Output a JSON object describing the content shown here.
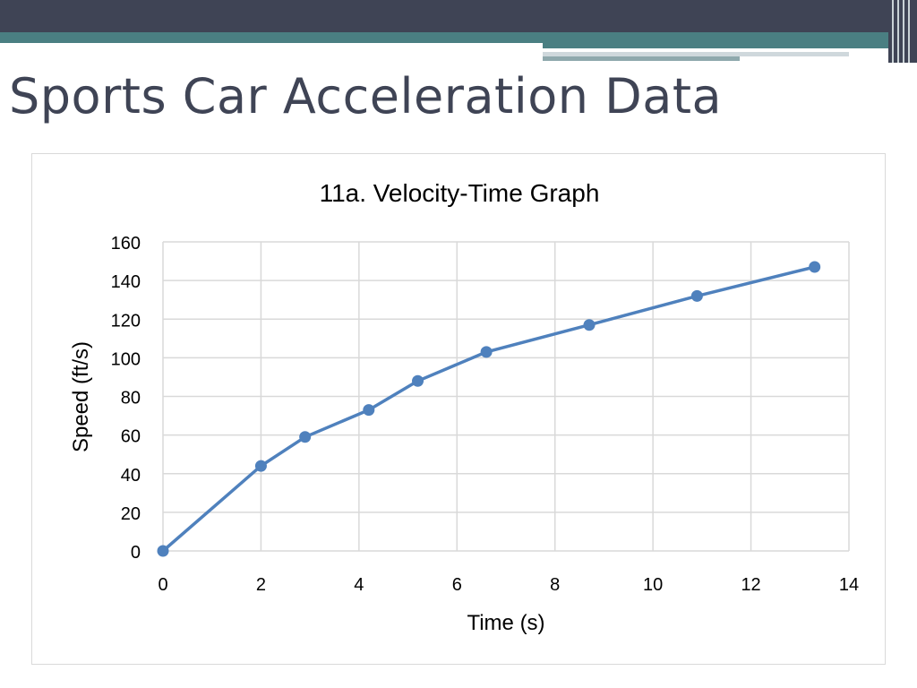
{
  "slide": {
    "title": "Sports Car Acceleration Data"
  },
  "colors": {
    "header_dark": "#3f4455",
    "header_teal": "#4a7f82",
    "series_line": "#4f81bd",
    "gridline": "#d9d9d9"
  },
  "chart_data": {
    "type": "line",
    "title": "11a. Velocity-Time Graph",
    "xlabel": "Time (s)",
    "ylabel": "Speed (ft/s)",
    "xlim": [
      0,
      14
    ],
    "ylim": [
      0,
      160
    ],
    "xticks": [
      0,
      2,
      4,
      6,
      8,
      10,
      12,
      14
    ],
    "yticks": [
      0,
      20,
      40,
      60,
      80,
      100,
      120,
      140,
      160
    ],
    "grid": true,
    "markers": true,
    "series": [
      {
        "x": [
          0,
          2.0,
          2.9,
          4.2,
          5.2,
          6.6,
          8.7,
          10.9,
          13.3
        ],
        "y": [
          0,
          44,
          59,
          73,
          88,
          103,
          117,
          132,
          147
        ]
      }
    ]
  }
}
